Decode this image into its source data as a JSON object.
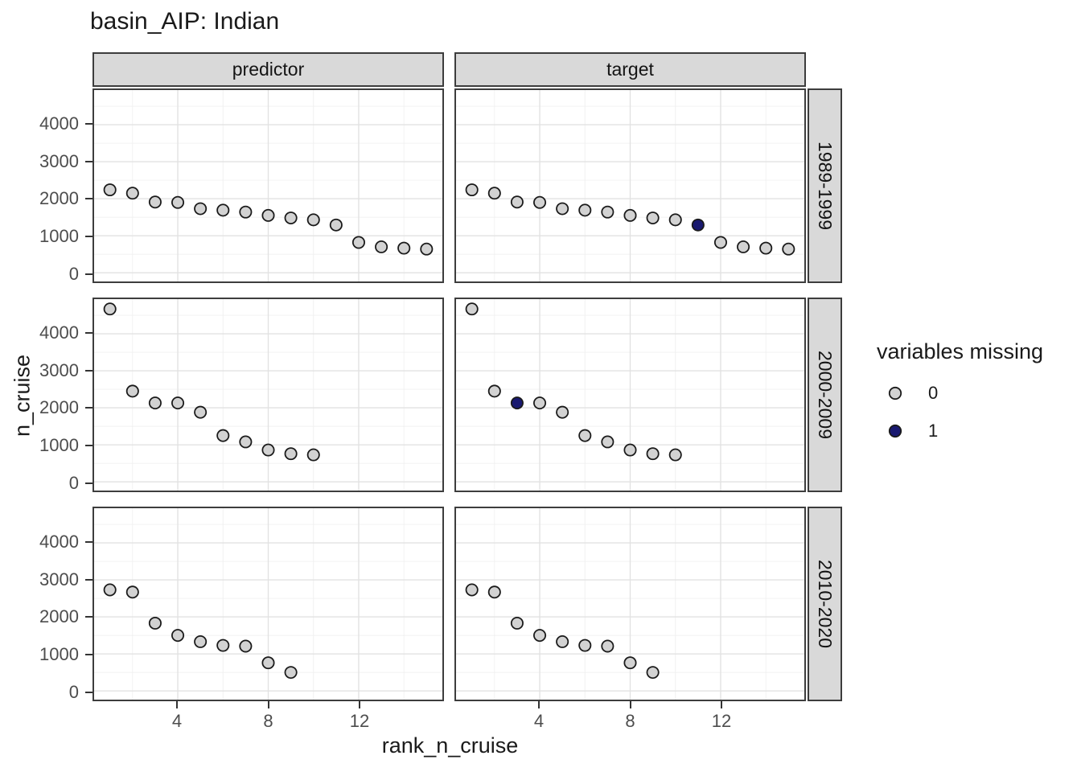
{
  "title": "basin_AIP: Indian",
  "chart_data": {
    "type": "scatter",
    "title": "basin_AIP: Indian",
    "xlabel": "rank_n_cruise",
    "ylabel": "n_cruise",
    "facet_cols": [
      "predictor",
      "target"
    ],
    "facet_rows": [
      "1989-1999",
      "2000-2009",
      "2010-2020"
    ],
    "x_domain": [
      0.3,
      15.7
    ],
    "y_domain": [
      -235,
      4935
    ],
    "x_major": [
      4,
      8,
      12
    ],
    "x_minor": [
      2,
      6,
      10,
      14
    ],
    "y_major": [
      4000,
      3000,
      2000,
      1000,
      0
    ],
    "y_minor": [
      4500,
      3500,
      2500,
      1500,
      500
    ],
    "grid": true,
    "legend": {
      "title": "variables missing",
      "position": "right",
      "levels": [
        {
          "value": 0,
          "label": "0",
          "fill": "#d2d2d2"
        },
        {
          "value": 1,
          "label": "1",
          "fill": "#191970"
        }
      ]
    },
    "colors": {
      "grid_major": "#e2e2e2",
      "grid_minor": "#f0f0f0",
      "point_stroke": "#1a1a1a",
      "strip_fill": "#d9d9d9",
      "panel_border": "#3d3d3d",
      "tick_text": "#4d4d4d"
    },
    "panels": [
      {
        "row": "1989-1999",
        "col": "predictor",
        "x": [
          1,
          2,
          3,
          4,
          5,
          6,
          7,
          8,
          9,
          10,
          11,
          12,
          13,
          14,
          15
        ],
        "y": [
          2240,
          2150,
          1910,
          1900,
          1730,
          1690,
          1640,
          1550,
          1480,
          1430,
          1290,
          820,
          700,
          665,
          640
        ],
        "missing": [
          0,
          0,
          0,
          0,
          0,
          0,
          0,
          0,
          0,
          0,
          0,
          0,
          0,
          0,
          0
        ]
      },
      {
        "row": "1989-1999",
        "col": "target",
        "x": [
          1,
          2,
          3,
          4,
          5,
          6,
          7,
          8,
          9,
          10,
          11,
          12,
          13,
          14,
          15
        ],
        "y": [
          2240,
          2150,
          1910,
          1900,
          1730,
          1690,
          1640,
          1550,
          1480,
          1430,
          1290,
          820,
          700,
          665,
          640
        ],
        "missing": [
          0,
          0,
          0,
          0,
          0,
          0,
          0,
          0,
          0,
          0,
          1,
          0,
          0,
          0,
          0
        ]
      },
      {
        "row": "2000-2009",
        "col": "predictor",
        "x": [
          1,
          2,
          3,
          4,
          5,
          6,
          7,
          8,
          9,
          10
        ],
        "y": [
          4670,
          2450,
          2130,
          2130,
          1880,
          1250,
          1080,
          860,
          760,
          730
        ],
        "missing": [
          0,
          0,
          0,
          0,
          0,
          0,
          0,
          0,
          0,
          0
        ]
      },
      {
        "row": "2000-2009",
        "col": "target",
        "x": [
          1,
          2,
          3,
          4,
          5,
          6,
          7,
          8,
          9,
          10
        ],
        "y": [
          4670,
          2450,
          2130,
          2130,
          1880,
          1250,
          1080,
          860,
          760,
          730
        ],
        "missing": [
          0,
          0,
          1,
          0,
          0,
          0,
          0,
          0,
          0,
          0
        ]
      },
      {
        "row": "2010-2020",
        "col": "predictor",
        "x": [
          1,
          2,
          3,
          4,
          5,
          6,
          7,
          8,
          9
        ],
        "y": [
          2730,
          2670,
          1830,
          1500,
          1330,
          1230,
          1210,
          760,
          500
        ],
        "missing": [
          0,
          0,
          0,
          0,
          0,
          0,
          0,
          0,
          0
        ]
      },
      {
        "row": "2010-2020",
        "col": "target",
        "x": [
          1,
          2,
          3,
          4,
          5,
          6,
          7,
          8,
          9
        ],
        "y": [
          2730,
          2670,
          1830,
          1500,
          1330,
          1230,
          1210,
          760,
          500
        ],
        "missing": [
          0,
          0,
          0,
          0,
          0,
          0,
          0,
          0,
          0
        ]
      }
    ]
  }
}
